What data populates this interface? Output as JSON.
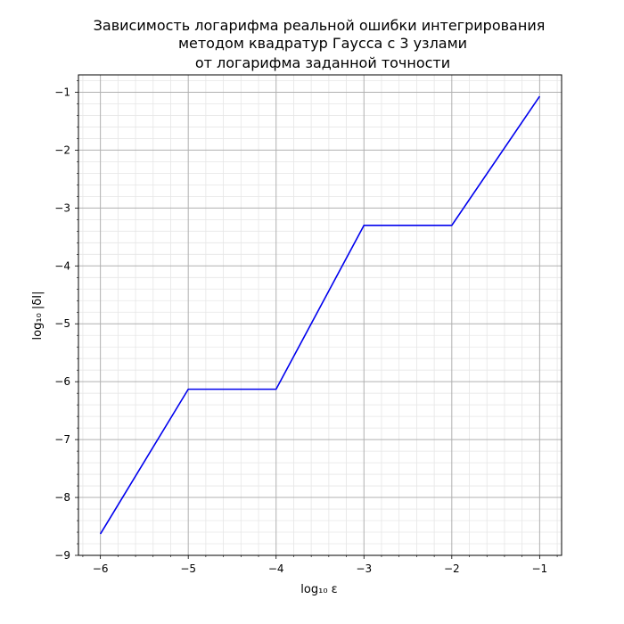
{
  "chart_data": {
    "type": "line",
    "title_lines": [
      "Зависимость логарифма реальной ошибки интегрирования",
      "методом квадратур Гаусса с 3 узлами",
      "от логарифма заданной точности"
    ],
    "xlabel": "log₁₀ ε",
    "ylabel": "log₁₀ |δI|",
    "xlim": [
      -6.25,
      -0.75
    ],
    "ylim": [
      -9,
      -0.7
    ],
    "x_ticks": [
      -6,
      -5,
      -4,
      -3,
      -2,
      -1
    ],
    "x_tick_labels": [
      "−6",
      "−5",
      "−4",
      "−3",
      "−2",
      "−1"
    ],
    "y_ticks": [
      -9,
      -8,
      -7,
      -6,
      -5,
      -4,
      -3,
      -2,
      -1
    ],
    "y_tick_labels": [
      "−9",
      "−8",
      "−7",
      "−6",
      "−5",
      "−4",
      "−3",
      "−2",
      "−1"
    ],
    "grid": true,
    "minor_grid": true,
    "series": [
      {
        "color": "#0000ee",
        "x": [
          -6,
          -5,
          -4,
          -3,
          -2,
          -1
        ],
        "y": [
          -8.63,
          -6.13,
          -6.13,
          -3.3,
          -3.3,
          -1.07
        ]
      }
    ]
  }
}
